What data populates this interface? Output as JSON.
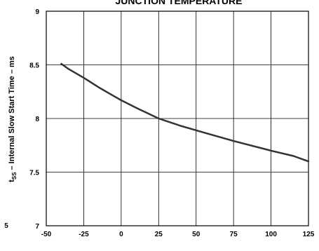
{
  "chart_data": {
    "type": "line",
    "title": "JUNCTION TEMPERATURE",
    "xlabel": "",
    "ylabel_parts": {
      "t": "t",
      "sub": "SS",
      "rest": " – Internal Slow Start Time – ms"
    },
    "xlim": [
      -50,
      125
    ],
    "ylim": [
      7,
      9
    ],
    "x_ticks": [
      "-50",
      "-25",
      "0",
      "25",
      "50",
      "75",
      "100",
      "125"
    ],
    "y_ticks": [
      "7",
      "7.5",
      "8",
      "8.5",
      "9"
    ],
    "x_tick_values": [
      -50,
      -25,
      0,
      25,
      50,
      75,
      100,
      125
    ],
    "y_tick_values": [
      7,
      7.5,
      8,
      8.5,
      9
    ],
    "grid": true,
    "series": [
      {
        "x": [
          -40,
          -35,
          -25,
          -15,
          -5,
          0,
          10,
          25,
          40,
          55,
          75,
          100,
          115,
          125
        ],
        "y": [
          8.51,
          8.46,
          8.38,
          8.29,
          8.21,
          8.17,
          8.1,
          8.0,
          7.93,
          7.87,
          7.79,
          7.7,
          7.65,
          7.6
        ]
      }
    ],
    "stray_label": "5"
  },
  "colors": {
    "line": "#333333",
    "grid": "#000000"
  }
}
